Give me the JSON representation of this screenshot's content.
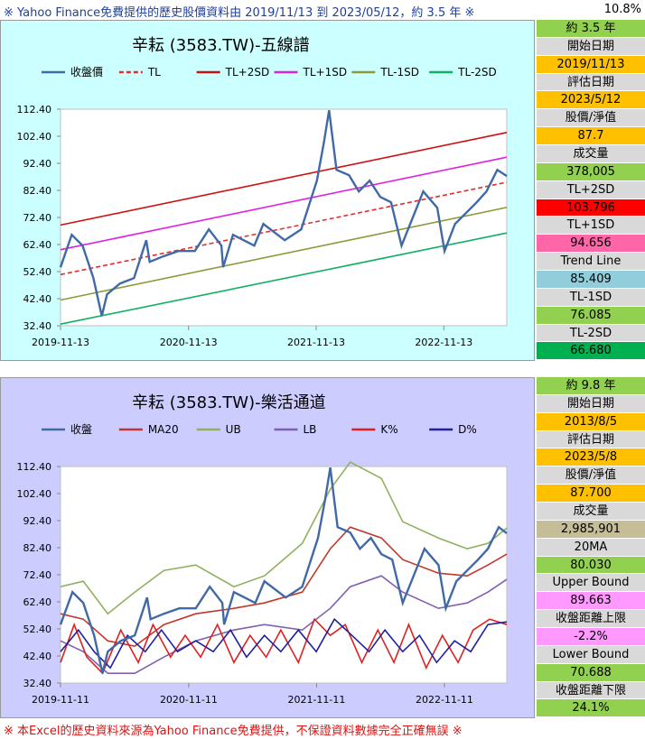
{
  "header": {
    "title": "※ Yahoo Finance免費提供的歷史股價資料由 2019/11/13 到 2023/05/12，約 3.5 年 ※",
    "percent": "10.8%"
  },
  "footer": {
    "text": "※ 本Excel的歷史資料來源為Yahoo Finance免費提供，不保證資料數據完全正確無誤 ※"
  },
  "top_side": [
    {
      "label": "約 3.5 年",
      "bg": "#92d050"
    },
    {
      "label": "開始日期",
      "bg": "#d9d9d9"
    },
    {
      "label": "2019/11/13",
      "bg": "#ffc000"
    },
    {
      "label": "評估日期",
      "bg": "#d9d9d9"
    },
    {
      "label": "2023/5/12",
      "bg": "#ffc000"
    },
    {
      "label": "股價/淨值",
      "bg": "#d9d9d9"
    },
    {
      "label": "87.7",
      "bg": "#ffc000"
    },
    {
      "label": "成交量",
      "bg": "#d9d9d9"
    },
    {
      "label": "378,005",
      "bg": "#92d050"
    },
    {
      "label": "TL+2SD",
      "bg": "#d9d9d9"
    },
    {
      "label": "103.796",
      "bg": "#ff0000"
    },
    {
      "label": "TL+1SD",
      "bg": "#d9d9d9"
    },
    {
      "label": "94.656",
      "bg": "#ff66a8"
    },
    {
      "label": "Trend Line",
      "bg": "#d9d9d9"
    },
    {
      "label": "85.409",
      "bg": "#92cddc"
    },
    {
      "label": "TL-1SD",
      "bg": "#d9d9d9"
    },
    {
      "label": "76.085",
      "bg": "#92d050"
    },
    {
      "label": "TL-2SD",
      "bg": "#d9d9d9"
    },
    {
      "label": "66.680",
      "bg": "#00b050"
    }
  ],
  "bottom_side": [
    {
      "label": "約 9.8 年",
      "bg": "#92d050"
    },
    {
      "label": "開始日期",
      "bg": "#d9d9d9"
    },
    {
      "label": "2013/8/5",
      "bg": "#ffc000"
    },
    {
      "label": "評估日期",
      "bg": "#d9d9d9"
    },
    {
      "label": "2023/5/8",
      "bg": "#ffc000"
    },
    {
      "label": "股價/淨值",
      "bg": "#d9d9d9"
    },
    {
      "label": "87.700",
      "bg": "#ffc000"
    },
    {
      "label": "成交量",
      "bg": "#d9d9d9"
    },
    {
      "label": "2,985,901",
      "bg": "#c4bd97"
    },
    {
      "label": "20MA",
      "bg": "#d9d9d9"
    },
    {
      "label": "80.030",
      "bg": "#92d050"
    },
    {
      "label": "Upper Bound",
      "bg": "#d9d9d9"
    },
    {
      "label": "89.663",
      "bg": "#ff99ff"
    },
    {
      "label": "收盤距離上限",
      "bg": "#d9d9d9"
    },
    {
      "label": "-2.2%",
      "bg": "#ff99ff"
    },
    {
      "label": "Lower Bound",
      "bg": "#d9d9d9"
    },
    {
      "label": "70.688",
      "bg": "#92d050"
    },
    {
      "label": "收盤距離下限",
      "bg": "#d9d9d9"
    },
    {
      "label": "24.1%",
      "bg": "#92d050"
    }
  ],
  "colors": {
    "top_bg": "#ccffff",
    "bottom_bg": "#ccccff",
    "plot_bg": "#ffffff"
  },
  "chart_data": [
    {
      "type": "line",
      "title": "辛耘 (3583.TW)-五線譜",
      "ylim": [
        32.4,
        112.4
      ],
      "yticks": [
        "112.40",
        "102.40",
        "92.40",
        "82.40",
        "72.40",
        "62.40",
        "52.40",
        "42.40",
        "32.40"
      ],
      "xticks": [
        "2019-11-13",
        "2020-11-13",
        "2021-11-13",
        "2022-11-13"
      ],
      "x_range": [
        "2019-11-13",
        "2023-05-12"
      ],
      "legend_position": "top",
      "series": [
        {
          "name": "收盤價",
          "color": "#4169a8",
          "x": [
            "2019-11-13",
            "2019-12-15",
            "2020-01-15",
            "2020-02-15",
            "2020-03-10",
            "2020-03-25",
            "2020-05-01",
            "2020-06-10",
            "2020-07-15",
            "2020-07-25",
            "2020-09-01",
            "2020-10-15",
            "2020-12-01",
            "2021-01-10",
            "2021-02-15",
            "2021-02-20",
            "2021-03-20",
            "2021-05-20",
            "2021-06-15",
            "2021-08-15",
            "2021-10-01",
            "2021-11-15",
            "2021-12-05",
            "2021-12-20",
            "2022-01-10",
            "2022-02-15",
            "2022-03-15",
            "2022-04-15",
            "2022-05-15",
            "2022-06-15",
            "2022-07-15",
            "2022-09-15",
            "2022-10-25",
            "2022-11-15",
            "2022-12-15",
            "2023-01-15",
            "2023-02-15",
            "2023-03-15",
            "2023-04-15",
            "2023-05-12"
          ],
          "values": [
            54,
            66,
            62,
            50,
            36,
            44,
            48,
            50,
            64,
            56,
            58,
            60,
            60,
            68,
            62,
            54,
            66,
            62,
            70,
            64,
            68,
            86,
            100,
            112,
            90,
            88,
            82,
            86,
            80,
            78,
            62,
            82,
            76,
            60,
            70,
            74,
            78,
            82,
            90,
            87.7
          ]
        },
        {
          "name": "TL",
          "color": "#e03030",
          "dash": true,
          "x": [
            "2019-11-13",
            "2023-05-12"
          ],
          "values": [
            51.3,
            85.409
          ]
        },
        {
          "name": "TL+2SD",
          "color": "#cc1010",
          "x": [
            "2019-11-13",
            "2023-05-12"
          ],
          "values": [
            69.6,
            103.796
          ]
        },
        {
          "name": "TL+1SD",
          "color": "#e020e0",
          "x": [
            "2019-11-13",
            "2023-05-12"
          ],
          "values": [
            60.5,
            94.656
          ]
        },
        {
          "name": "TL-1SD",
          "color": "#8c9a3a",
          "x": [
            "2019-11-13",
            "2023-05-12"
          ],
          "values": [
            41.9,
            76.085
          ]
        },
        {
          "name": "TL-2SD",
          "color": "#10b060",
          "x": [
            "2019-11-13",
            "2023-05-12"
          ],
          "values": [
            33.0,
            66.68
          ]
        }
      ]
    },
    {
      "type": "line",
      "title": "辛耘 (3583.TW)-樂活通道",
      "ylim": [
        32.4,
        112.4
      ],
      "yticks": [
        "112.40",
        "102.40",
        "92.40",
        "82.40",
        "72.40",
        "62.40",
        "52.40",
        "42.40",
        "32.40"
      ],
      "xticks": [
        "2019-11-11",
        "2020-11-11",
        "2021-11-11",
        "2022-11-11"
      ],
      "x_range": [
        "2019-11-11",
        "2023-05-08"
      ],
      "legend_position": "top",
      "series": [
        {
          "name": "收盤",
          "color": "#4169a8",
          "x": [
            "2019-11-11",
            "2019-12-15",
            "2020-01-15",
            "2020-02-15",
            "2020-03-10",
            "2020-03-25",
            "2020-05-01",
            "2020-06-10",
            "2020-07-15",
            "2020-07-25",
            "2020-09-01",
            "2020-10-15",
            "2020-12-01",
            "2021-01-10",
            "2021-02-15",
            "2021-02-20",
            "2021-03-20",
            "2021-05-20",
            "2021-06-15",
            "2021-08-15",
            "2021-10-01",
            "2021-11-15",
            "2021-12-05",
            "2021-12-20",
            "2022-01-10",
            "2022-02-15",
            "2022-03-15",
            "2022-04-15",
            "2022-05-15",
            "2022-06-15",
            "2022-07-15",
            "2022-09-15",
            "2022-10-25",
            "2022-11-15",
            "2022-12-15",
            "2023-01-15",
            "2023-02-15",
            "2023-03-15",
            "2023-04-15",
            "2023-05-08"
          ],
          "values": [
            54,
            66,
            62,
            50,
            36,
            44,
            48,
            50,
            64,
            56,
            58,
            60,
            60,
            68,
            62,
            54,
            66,
            62,
            70,
            64,
            68,
            86,
            100,
            112,
            90,
            88,
            82,
            86,
            80,
            78,
            62,
            82,
            76,
            60,
            70,
            74,
            78,
            82,
            90,
            87.7
          ]
        },
        {
          "name": "MA20",
          "color": "#c0392b",
          "x": [
            "2019-11-11",
            "2020-01-15",
            "2020-03-25",
            "2020-06-10",
            "2020-09-01",
            "2020-12-01",
            "2021-03-20",
            "2021-06-15",
            "2021-10-01",
            "2021-12-20",
            "2022-02-15",
            "2022-05-15",
            "2022-07-15",
            "2022-10-25",
            "2023-01-15",
            "2023-03-15",
            "2023-05-08"
          ],
          "values": [
            58,
            56,
            48,
            46,
            54,
            58,
            60,
            62,
            66,
            82,
            90,
            86,
            78,
            73,
            72,
            76,
            80.03
          ]
        },
        {
          "name": "UB",
          "color": "#8fb060",
          "x": [
            "2019-11-11",
            "2020-01-15",
            "2020-03-25",
            "2020-06-10",
            "2020-09-01",
            "2020-12-01",
            "2021-03-20",
            "2021-06-15",
            "2021-10-01",
            "2021-12-20",
            "2022-02-15",
            "2022-05-15",
            "2022-07-15",
            "2022-10-25",
            "2023-01-15",
            "2023-03-15",
            "2023-05-08"
          ],
          "values": [
            68,
            70,
            58,
            66,
            74,
            76,
            68,
            72,
            84,
            104,
            114,
            108,
            92,
            86,
            82,
            84,
            89.663
          ]
        },
        {
          "name": "LB",
          "color": "#8060b0",
          "x": [
            "2019-11-11",
            "2020-01-15",
            "2020-03-25",
            "2020-06-10",
            "2020-09-01",
            "2020-12-01",
            "2021-03-20",
            "2021-06-15",
            "2021-10-01",
            "2021-12-20",
            "2022-02-15",
            "2022-05-15",
            "2022-07-15",
            "2022-10-25",
            "2023-01-15",
            "2023-03-15",
            "2023-05-08"
          ],
          "values": [
            48,
            44,
            36,
            36,
            42,
            48,
            52,
            54,
            52,
            60,
            68,
            72,
            66,
            60,
            62,
            66,
            70.688
          ]
        },
        {
          "name": "K%",
          "color": "#e02020",
          "x": [
            "2019-11-11",
            "2019-12-20",
            "2020-01-25",
            "2020-03-10",
            "2020-05-01",
            "2020-06-20",
            "2020-08-01",
            "2020-09-20",
            "2020-11-01",
            "2020-12-15",
            "2021-02-01",
            "2021-03-20",
            "2021-05-05",
            "2021-06-20",
            "2021-08-01",
            "2021-09-20",
            "2021-11-05",
            "2021-12-20",
            "2022-02-01",
            "2022-03-20",
            "2022-05-05",
            "2022-06-20",
            "2022-08-01",
            "2022-09-20",
            "2022-11-05",
            "2022-12-20",
            "2023-02-01",
            "2023-03-20",
            "2023-05-08"
          ],
          "values": [
            40,
            54,
            42,
            36,
            52,
            40,
            54,
            42,
            50,
            42,
            54,
            40,
            50,
            42,
            52,
            40,
            56,
            50,
            54,
            40,
            52,
            40,
            54,
            38,
            50,
            40,
            52,
            56,
            54
          ]
        },
        {
          "name": "D%",
          "color": "#2020a0",
          "x": [
            "2019-11-11",
            "2020-01-01",
            "2020-02-15",
            "2020-04-01",
            "2020-05-20",
            "2020-07-10",
            "2020-08-25",
            "2020-10-10",
            "2020-12-01",
            "2021-01-20",
            "2021-03-10",
            "2021-04-25",
            "2021-06-15",
            "2021-08-01",
            "2021-09-20",
            "2021-11-10",
            "2022-01-01",
            "2022-02-20",
            "2022-04-10",
            "2022-05-25",
            "2022-07-15",
            "2022-09-01",
            "2022-10-20",
            "2022-12-10",
            "2023-01-25",
            "2023-03-15",
            "2023-05-08"
          ],
          "values": [
            44,
            52,
            44,
            38,
            50,
            44,
            52,
            44,
            48,
            44,
            52,
            42,
            50,
            44,
            52,
            44,
            56,
            50,
            44,
            52,
            44,
            50,
            40,
            48,
            44,
            54,
            55
          ]
        }
      ]
    }
  ]
}
